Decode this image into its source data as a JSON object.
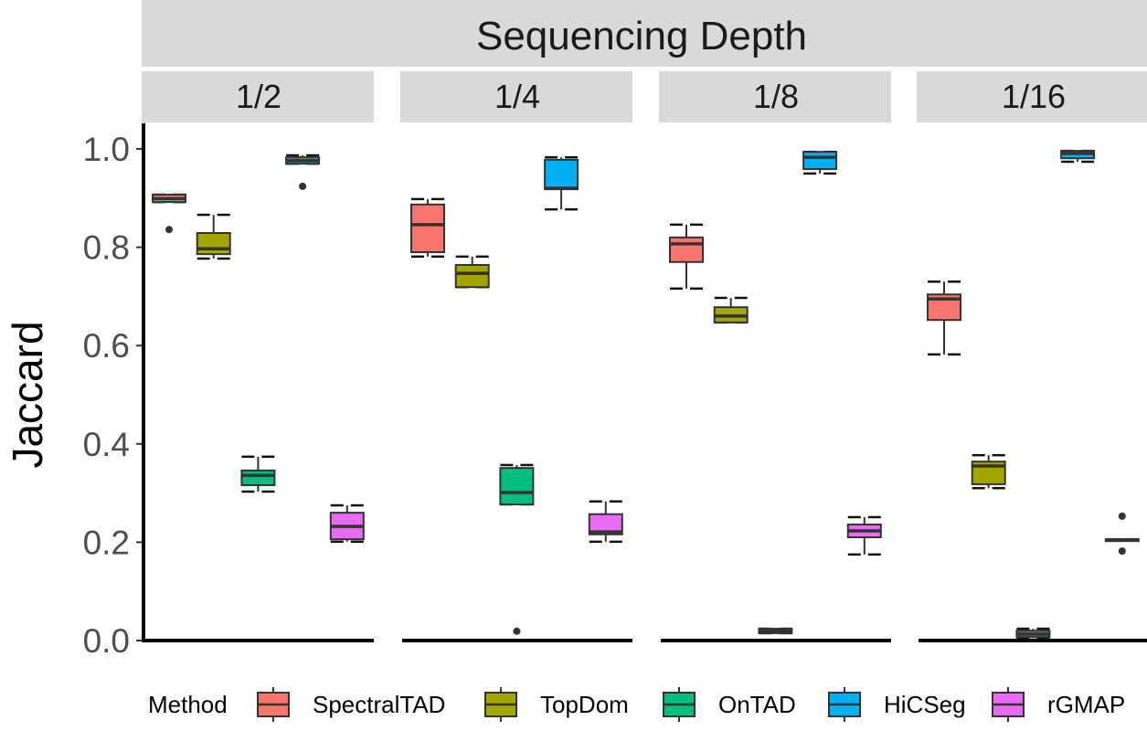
{
  "chart_data": {
    "type": "box",
    "facet_title": "Sequencing Depth",
    "ylabel": "Jaccard",
    "ylim": [
      0,
      1
    ],
    "yticks": [
      "0.0",
      "0.2",
      "0.4",
      "0.6",
      "0.8",
      "1.0"
    ],
    "grid": false,
    "legend": {
      "title": "Method",
      "position": "bottom"
    },
    "methods": [
      "SpectralTAD",
      "TopDom",
      "OnTAD",
      "HiCSeg",
      "rGMAP"
    ],
    "colors": {
      "SpectralTAD": "#F8766D",
      "TopDom": "#A3A500",
      "OnTAD": "#00BF7D",
      "HiCSeg": "#00B0F6",
      "rGMAP": "#E76BF3"
    },
    "panels": [
      {
        "label": "1/2",
        "boxes": [
          {
            "method": "SpectralTAD",
            "min": 0.892,
            "q1": 0.892,
            "median": 0.899,
            "q3": 0.907,
            "max": 0.907,
            "outliers": [
              0.836
            ]
          },
          {
            "method": "TopDom",
            "min": 0.777,
            "q1": 0.786,
            "median": 0.797,
            "q3": 0.829,
            "max": 0.866,
            "outliers": []
          },
          {
            "method": "OnTAD",
            "min": 0.303,
            "q1": 0.316,
            "median": 0.336,
            "q3": 0.346,
            "max": 0.374,
            "outliers": []
          },
          {
            "method": "HiCSeg",
            "min": 0.97,
            "q1": 0.97,
            "median": 0.976,
            "q3": 0.983,
            "max": 0.987,
            "outliers": [
              0.924
            ]
          },
          {
            "method": "rGMAP",
            "min": 0.201,
            "q1": 0.206,
            "median": 0.232,
            "q3": 0.26,
            "max": 0.275,
            "outliers": []
          }
        ]
      },
      {
        "label": "1/4",
        "boxes": [
          {
            "method": "SpectralTAD",
            "min": 0.781,
            "q1": 0.79,
            "median": 0.846,
            "q3": 0.887,
            "max": 0.898,
            "outliers": []
          },
          {
            "method": "TopDom",
            "min": 0.719,
            "q1": 0.719,
            "median": 0.747,
            "q3": 0.764,
            "max": 0.781,
            "outliers": []
          },
          {
            "method": "OnTAD",
            "min": 0.277,
            "q1": 0.277,
            "median": 0.301,
            "q3": 0.351,
            "max": 0.357,
            "outliers": [
              0.019
            ]
          },
          {
            "method": "HiCSeg",
            "min": 0.877,
            "q1": 0.918,
            "median": 0.92,
            "q3": 0.978,
            "max": 0.983,
            "outliers": []
          },
          {
            "method": "rGMAP",
            "min": 0.201,
            "q1": 0.216,
            "median": 0.221,
            "q3": 0.257,
            "max": 0.283,
            "outliers": []
          }
        ]
      },
      {
        "label": "1/8",
        "boxes": [
          {
            "method": "SpectralTAD",
            "min": 0.716,
            "q1": 0.77,
            "median": 0.807,
            "q3": 0.82,
            "max": 0.846,
            "outliers": []
          },
          {
            "method": "TopDom",
            "min": 0.647,
            "q1": 0.647,
            "median": 0.66,
            "q3": 0.678,
            "max": 0.697,
            "outliers": []
          },
          {
            "method": "OnTAD",
            "min": 0.015,
            "q1": 0.015,
            "median": 0.019,
            "q3": 0.024,
            "max": 0.024,
            "outliers": []
          },
          {
            "method": "HiCSeg",
            "min": 0.95,
            "q1": 0.959,
            "median": 0.983,
            "q3": 0.994,
            "max": 0.994,
            "outliers": []
          },
          {
            "method": "rGMAP",
            "min": 0.175,
            "q1": 0.21,
            "median": 0.223,
            "q3": 0.236,
            "max": 0.251,
            "outliers": []
          }
        ]
      },
      {
        "label": "1/16",
        "boxes": [
          {
            "method": "SpectralTAD",
            "min": 0.582,
            "q1": 0.652,
            "median": 0.695,
            "q3": 0.704,
            "max": 0.73,
            "outliers": []
          },
          {
            "method": "TopDom",
            "min": 0.31,
            "q1": 0.318,
            "median": 0.355,
            "q3": 0.364,
            "max": 0.377,
            "outliers": []
          },
          {
            "method": "OnTAD",
            "min": 0.005,
            "q1": 0.007,
            "median": 0.013,
            "q3": 0.02,
            "max": 0.024,
            "outliers": []
          },
          {
            "method": "HiCSeg",
            "min": 0.974,
            "q1": 0.981,
            "median": 0.991,
            "q3": 0.996,
            "max": 0.996,
            "outliers": []
          },
          {
            "method": "rGMAP",
            "min": 0.204,
            "q1": 0.204,
            "median": 0.205,
            "q3": 0.206,
            "max": 0.206,
            "outliers": [
              0.253,
              0.182
            ]
          }
        ]
      }
    ]
  }
}
